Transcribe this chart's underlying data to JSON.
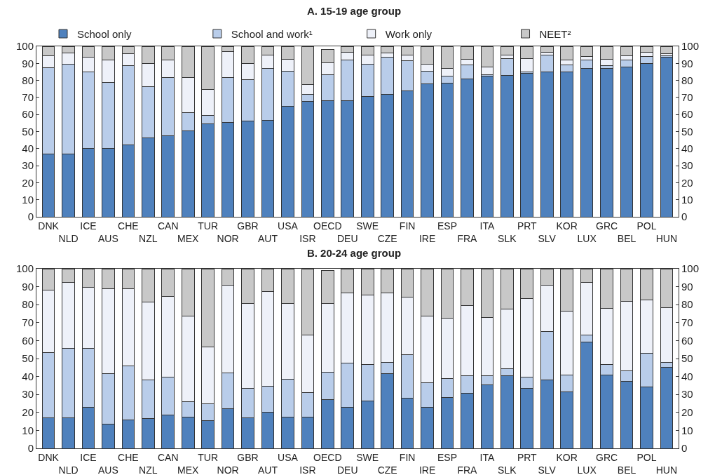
{
  "chart_data": [
    {
      "type": "bar",
      "title": "A. 15-19 age group",
      "stacked": true,
      "legend": "top",
      "grid": false,
      "categories": [
        "DNK",
        "NLD",
        "ICE",
        "AUS",
        "CHE",
        "NZL",
        "CAN",
        "MEX",
        "TUR",
        "NOR",
        "GBR",
        "AUT",
        "USA",
        "ISR",
        "OECD",
        "DEU",
        "SWE",
        "CZE",
        "FIN",
        "IRE",
        "ESP",
        "FRA",
        "ITA",
        "SLK",
        "PRT",
        "SLV",
        "KOR",
        "LUX",
        "GRC",
        "BEL",
        "POL",
        "HUN"
      ],
      "series": [
        {
          "name": "School only",
          "color": "#4f81bd",
          "values": [
            37,
            37,
            40,
            40,
            42,
            46.5,
            47.5,
            50.5,
            54.5,
            55.5,
            56,
            56.5,
            65,
            67.5,
            68,
            68,
            70.5,
            72,
            74,
            78,
            78.5,
            81,
            82.5,
            83,
            84,
            85,
            85,
            87,
            87,
            88,
            90,
            93.5
          ]
        },
        {
          "name": "School and work¹",
          "color": "#b9cdea",
          "values": [
            50.5,
            52.5,
            45,
            39,
            46.5,
            30,
            34,
            10.5,
            5,
            26,
            24.5,
            30.5,
            20.5,
            4.5,
            15.5,
            24,
            19,
            21.5,
            17.5,
            7.5,
            4,
            8,
            1,
            10,
            1,
            10,
            4,
            5,
            1.5,
            4,
            4,
            1
          ]
        },
        {
          "name": "Work only",
          "color": "#eef1f9",
          "values": [
            7,
            6.5,
            8.5,
            13,
            7,
            13.5,
            10.5,
            20.5,
            15,
            15.5,
            9.5,
            8,
            7,
            5.5,
            7,
            4.5,
            5.5,
            2.5,
            3.5,
            4,
            4.5,
            3.5,
            4.5,
            2,
            8,
            1.5,
            3,
            2,
            4,
            2.5,
            2.5,
            1
          ]
        },
        {
          "name": "NEET²",
          "color": "#c8c8c8",
          "values": [
            5.5,
            4,
            6.5,
            8,
            4.5,
            10,
            8,
            18.5,
            25.5,
            3,
            10,
            5,
            7.5,
            22.5,
            7.5,
            3.5,
            5,
            4,
            5,
            10.5,
            13,
            7.5,
            12,
            5,
            7,
            3.5,
            8,
            6,
            7.5,
            5.5,
            3.5,
            4.5
          ]
        }
      ],
      "ylim": [
        0,
        100
      ],
      "yticks": [
        0,
        10,
        20,
        30,
        40,
        50,
        60,
        70,
        80,
        90,
        100
      ],
      "y2lim": [
        0,
        100
      ],
      "y2ticks": [
        0,
        10,
        20,
        30,
        40,
        50,
        60,
        70,
        80,
        90,
        100
      ]
    },
    {
      "type": "bar",
      "title": "B. 20-24 age group",
      "stacked": true,
      "legend": false,
      "grid": false,
      "categories": [
        "DNK",
        "NLD",
        "ICE",
        "AUS",
        "CHE",
        "NZL",
        "CAN",
        "MEX",
        "TUR",
        "NOR",
        "GBR",
        "AUT",
        "USA",
        "ISR",
        "OECD",
        "DEU",
        "SWE",
        "CZE",
        "FIN",
        "IRE",
        "ESP",
        "FRA",
        "ITA",
        "SLK",
        "PRT",
        "SLV",
        "KOR",
        "LUX",
        "GRC",
        "BEL",
        "POL",
        "HUN"
      ],
      "series": [
        {
          "color": "#4f81bd",
          "values": [
            17,
            17,
            23,
            13.5,
            16,
            16.5,
            18.5,
            17.5,
            15.5,
            22,
            17,
            20,
            17.5,
            17.5,
            27,
            23,
            26.5,
            41.5,
            28,
            23,
            28.5,
            30.5,
            35.5,
            40.5,
            33.5,
            38,
            31.5,
            59,
            41,
            37.5,
            34,
            45
          ]
        },
        {
          "color": "#b9cdea",
          "values": [
            36.5,
            38.5,
            32.5,
            28,
            30,
            21.5,
            21,
            8.5,
            9.5,
            20,
            16.5,
            14.5,
            21,
            13.5,
            15.5,
            24.5,
            20,
            6.5,
            24,
            13.5,
            10.5,
            10,
            5,
            4,
            6,
            27,
            9.5,
            4,
            5.5,
            5.5,
            19,
            3
          ]
        },
        {
          "color": "#eef1f9",
          "values": [
            34.5,
            37,
            34,
            47.5,
            43,
            43.5,
            45,
            47.5,
            31.5,
            49,
            47,
            53,
            42,
            32,
            38,
            39,
            39,
            38.5,
            32,
            37,
            33.5,
            39,
            32.5,
            33,
            44,
            26,
            35.5,
            29.5,
            31.5,
            39,
            29.5,
            30.5
          ]
        },
        {
          "color": "#c8c8c8",
          "values": [
            12,
            7.5,
            10.5,
            11,
            11,
            18.5,
            15.5,
            26.5,
            43.5,
            9,
            19.5,
            12.5,
            19.5,
            37,
            18.5,
            13.5,
            14.5,
            13.5,
            16,
            26.5,
            27.5,
            20.5,
            27,
            22.5,
            16.5,
            9,
            23.5,
            7.5,
            22,
            18,
            17.5,
            21.5
          ]
        }
      ],
      "ylim": [
        0,
        100
      ],
      "yticks": [
        0,
        10,
        20,
        30,
        40,
        50,
        60,
        70,
        80,
        90,
        100
      ],
      "y2lim": [
        0,
        100
      ],
      "y2ticks": [
        0,
        10,
        20,
        30,
        40,
        50,
        60,
        70,
        80,
        90,
        100
      ]
    }
  ]
}
